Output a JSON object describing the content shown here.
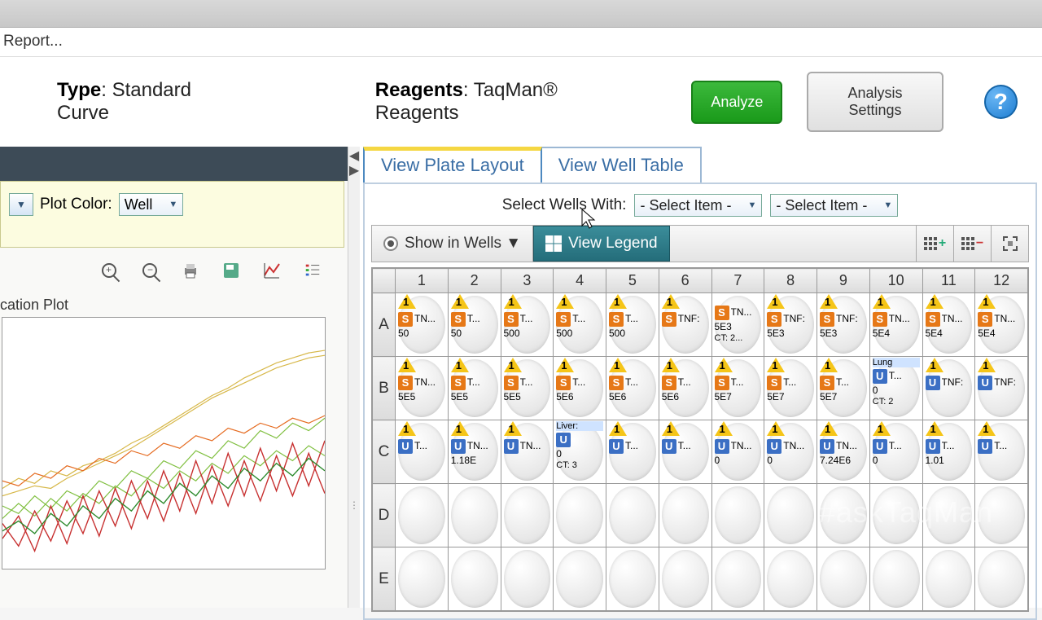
{
  "menubar": {
    "report": "Report..."
  },
  "header": {
    "type_label": "Type",
    "type_value": "Standard Curve",
    "reagents_label": "Reagents",
    "reagents_value": "TaqMan® Reagents",
    "analyze": "Analyze",
    "settings": "Analysis Settings",
    "help": "?"
  },
  "left": {
    "plot_color_label": "Plot Color:",
    "plot_color_value": "Well",
    "plot_title": "cation Plot",
    "chart": {
      "type": "line",
      "xlim": [
        0,
        40
      ],
      "ylim": [
        0,
        10
      ],
      "background_color": "#ffffff",
      "grid_color": "#e0e0e0",
      "series": [
        {
          "color": "#d7b84a",
          "width": 1.2,
          "points": [
            [
              0,
              3.2
            ],
            [
              2,
              3.6
            ],
            [
              4,
              3.4
            ],
            [
              6,
              3.9
            ],
            [
              8,
              3.7
            ],
            [
              10,
              4.1
            ],
            [
              12,
              4.3
            ],
            [
              14,
              4.6
            ],
            [
              16,
              5.0
            ],
            [
              18,
              5.3
            ],
            [
              20,
              5.7
            ],
            [
              22,
              6.1
            ],
            [
              24,
              6.5
            ],
            [
              26,
              6.9
            ],
            [
              28,
              7.2
            ],
            [
              30,
              7.6
            ],
            [
              32,
              7.9
            ],
            [
              34,
              8.2
            ],
            [
              36,
              8.4
            ],
            [
              38,
              8.6
            ],
            [
              40,
              8.7
            ]
          ]
        },
        {
          "color": "#d7b84a",
          "width": 1.2,
          "points": [
            [
              0,
              2.9
            ],
            [
              2,
              3.1
            ],
            [
              4,
              3.3
            ],
            [
              6,
              3.2
            ],
            [
              8,
              3.6
            ],
            [
              10,
              3.9
            ],
            [
              12,
              4.2
            ],
            [
              14,
              4.5
            ],
            [
              16,
              4.8
            ],
            [
              18,
              5.2
            ],
            [
              20,
              5.6
            ],
            [
              22,
              6.0
            ],
            [
              24,
              6.4
            ],
            [
              26,
              6.8
            ],
            [
              28,
              7.1
            ],
            [
              30,
              7.4
            ],
            [
              32,
              7.7
            ],
            [
              34,
              8.0
            ],
            [
              36,
              8.2
            ],
            [
              38,
              8.4
            ],
            [
              40,
              8.5
            ]
          ]
        },
        {
          "color": "#7fbf3f",
          "width": 1.2,
          "points": [
            [
              0,
              2.5
            ],
            [
              2,
              2.2
            ],
            [
              4,
              2.9
            ],
            [
              6,
              2.4
            ],
            [
              8,
              3.1
            ],
            [
              10,
              2.8
            ],
            [
              12,
              3.5
            ],
            [
              14,
              3.2
            ],
            [
              16,
              3.9
            ],
            [
              18,
              3.6
            ],
            [
              20,
              4.3
            ],
            [
              22,
              4.0
            ],
            [
              24,
              4.7
            ],
            [
              26,
              4.4
            ],
            [
              28,
              5.1
            ],
            [
              30,
              4.8
            ],
            [
              32,
              5.5
            ],
            [
              34,
              5.2
            ],
            [
              36,
              5.8
            ],
            [
              38,
              5.5
            ],
            [
              40,
              6.0
            ]
          ]
        },
        {
          "color": "#7fbf3f",
          "width": 1.2,
          "points": [
            [
              0,
              2.0
            ],
            [
              2,
              2.6
            ],
            [
              4,
              2.1
            ],
            [
              6,
              2.8
            ],
            [
              8,
              2.3
            ],
            [
              10,
              3.0
            ],
            [
              12,
              2.6
            ],
            [
              14,
              3.3
            ],
            [
              16,
              2.9
            ],
            [
              18,
              3.6
            ],
            [
              20,
              3.2
            ],
            [
              22,
              3.9
            ],
            [
              24,
              3.5
            ],
            [
              26,
              4.2
            ],
            [
              28,
              3.8
            ],
            [
              30,
              4.5
            ],
            [
              32,
              4.1
            ],
            [
              34,
              4.7
            ],
            [
              36,
              4.3
            ],
            [
              38,
              4.9
            ],
            [
              40,
              4.5
            ]
          ]
        },
        {
          "color": "#c73030",
          "width": 1.4,
          "points": [
            [
              0,
              1.8
            ],
            [
              2,
              0.9
            ],
            [
              4,
              2.3
            ],
            [
              6,
              1.1
            ],
            [
              8,
              2.7
            ],
            [
              10,
              1.4
            ],
            [
              12,
              3.1
            ],
            [
              14,
              1.7
            ],
            [
              16,
              3.5
            ],
            [
              18,
              2.0
            ],
            [
              20,
              3.9
            ],
            [
              22,
              2.3
            ],
            [
              24,
              4.3
            ],
            [
              26,
              2.6
            ],
            [
              28,
              4.6
            ],
            [
              30,
              2.9
            ],
            [
              32,
              4.8
            ],
            [
              34,
              3.1
            ],
            [
              36,
              5.0
            ],
            [
              38,
              3.3
            ],
            [
              40,
              5.1
            ]
          ]
        },
        {
          "color": "#c73030",
          "width": 1.4,
          "points": [
            [
              0,
              1.2
            ],
            [
              2,
              2.1
            ],
            [
              4,
              0.7
            ],
            [
              6,
              2.5
            ],
            [
              8,
              1.0
            ],
            [
              10,
              2.9
            ],
            [
              12,
              1.3
            ],
            [
              14,
              3.2
            ],
            [
              16,
              1.6
            ],
            [
              18,
              3.5
            ],
            [
              20,
              1.9
            ],
            [
              22,
              3.8
            ],
            [
              24,
              2.2
            ],
            [
              26,
              4.1
            ],
            [
              28,
              2.5
            ],
            [
              30,
              4.3
            ],
            [
              32,
              2.7
            ],
            [
              34,
              4.5
            ],
            [
              36,
              2.9
            ],
            [
              38,
              4.6
            ],
            [
              40,
              3.0
            ]
          ]
        },
        {
          "color": "#e56a1f",
          "width": 1.2,
          "points": [
            [
              0,
              3.5
            ],
            [
              2,
              3.3
            ],
            [
              4,
              3.8
            ],
            [
              6,
              3.6
            ],
            [
              8,
              4.1
            ],
            [
              10,
              3.9
            ],
            [
              12,
              4.4
            ],
            [
              14,
              4.2
            ],
            [
              16,
              4.7
            ],
            [
              18,
              4.5
            ],
            [
              20,
              5.0
            ],
            [
              22,
              4.8
            ],
            [
              24,
              5.3
            ],
            [
              26,
              5.1
            ],
            [
              28,
              5.6
            ],
            [
              30,
              5.4
            ],
            [
              32,
              5.8
            ],
            [
              34,
              5.6
            ],
            [
              36,
              6.0
            ],
            [
              38,
              5.8
            ],
            [
              40,
              6.1
            ]
          ]
        },
        {
          "color": "#2e8b2e",
          "width": 1.4,
          "points": [
            [
              0,
              1.5
            ],
            [
              2,
              1.9
            ],
            [
              4,
              1.4
            ],
            [
              6,
              2.2
            ],
            [
              8,
              1.7
            ],
            [
              10,
              2.5
            ],
            [
              12,
              2.0
            ],
            [
              14,
              2.8
            ],
            [
              16,
              2.3
            ],
            [
              18,
              3.1
            ],
            [
              20,
              2.6
            ],
            [
              22,
              3.4
            ],
            [
              24,
              2.9
            ],
            [
              26,
              3.7
            ],
            [
              28,
              3.2
            ],
            [
              30,
              4.0
            ],
            [
              32,
              3.5
            ],
            [
              34,
              4.2
            ],
            [
              36,
              3.7
            ],
            [
              38,
              4.4
            ],
            [
              40,
              3.9
            ]
          ]
        }
      ]
    }
  },
  "right": {
    "tabs": {
      "layout": "View Plate Layout",
      "table": "View Well Table"
    },
    "select_label": "Select Wells With:",
    "select_item": "- Select Item -",
    "show_in_wells": "Show in Wells ▼",
    "view_legend": "View Legend",
    "cols": [
      "1",
      "2",
      "3",
      "4",
      "5",
      "6",
      "7",
      "8",
      "9",
      "10",
      "11",
      "12"
    ],
    "rows": [
      "A",
      "B",
      "C",
      "D",
      "E"
    ],
    "plate": {
      "A": [
        {
          "f": 1,
          "b": "S",
          "t": "TN...",
          "v": "50"
        },
        {
          "f": 1,
          "b": "S",
          "t": "T...",
          "v": "50"
        },
        {
          "f": 1,
          "b": "S",
          "t": "T...",
          "v": "500"
        },
        {
          "f": 1,
          "b": "S",
          "t": "T...",
          "v": "500"
        },
        {
          "f": 1,
          "b": "S",
          "t": "T...",
          "v": "500"
        },
        {
          "f": 1,
          "b": "S",
          "t": "TNF:",
          "v": ""
        },
        {
          "f": 0,
          "b": "S",
          "t": "TN...",
          "v": "5E3",
          "v2": "CT: 2..."
        },
        {
          "f": 1,
          "b": "S",
          "t": "TNF:",
          "v": "5E3"
        },
        {
          "f": 1,
          "b": "S",
          "t": "TNF:",
          "v": "5E3"
        },
        {
          "f": 1,
          "b": "S",
          "t": "TN...",
          "v": "5E4"
        },
        {
          "f": 1,
          "b": "S",
          "t": "TN...",
          "v": "5E4"
        },
        {
          "f": 1,
          "b": "S",
          "t": "TN...",
          "v": "5E4"
        }
      ],
      "B": [
        {
          "f": 1,
          "b": "S",
          "t": "TN...",
          "v": "5E5"
        },
        {
          "f": 1,
          "b": "S",
          "t": "T...",
          "v": "5E5"
        },
        {
          "f": 1,
          "b": "S",
          "t": "T...",
          "v": "5E5"
        },
        {
          "f": 1,
          "b": "S",
          "t": "T...",
          "v": "5E6"
        },
        {
          "f": 1,
          "b": "S",
          "t": "T...",
          "v": "5E6"
        },
        {
          "f": 1,
          "b": "S",
          "t": "T...",
          "v": "5E6"
        },
        {
          "f": 1,
          "b": "S",
          "t": "T...",
          "v": "5E7"
        },
        {
          "f": 1,
          "b": "S",
          "t": "T...",
          "v": "5E7"
        },
        {
          "f": 1,
          "b": "S",
          "t": "T...",
          "v": "5E7"
        },
        {
          "f": 0,
          "b": "U",
          "t": "T...",
          "v": "0",
          "top": "Lung",
          "v2": "CT: 2"
        },
        {
          "f": 1,
          "b": "U",
          "t": "TNF:",
          "v": ""
        },
        {
          "f": 1,
          "b": "U",
          "t": "TNF:",
          "v": ""
        }
      ],
      "C": [
        {
          "f": 1,
          "b": "U",
          "t": "T...",
          "v": ""
        },
        {
          "f": 1,
          "b": "U",
          "t": "TN...",
          "v": "1.18E"
        },
        {
          "f": 1,
          "b": "U",
          "t": "TN...",
          "v": ""
        },
        {
          "f": 0,
          "b": "U",
          "t": "",
          "v": "0",
          "top": "Liver:",
          "v2": "CT: 3"
        },
        {
          "f": 1,
          "b": "U",
          "t": "T...",
          "v": ""
        },
        {
          "f": 1,
          "b": "U",
          "t": "T...",
          "v": ""
        },
        {
          "f": 1,
          "b": "U",
          "t": "TN...",
          "v": "0"
        },
        {
          "f": 1,
          "b": "U",
          "t": "TN...",
          "v": "0"
        },
        {
          "f": 1,
          "b": "U",
          "t": "TN...",
          "v": "7.24E6"
        },
        {
          "f": 1,
          "b": "U",
          "t": "T...",
          "v": "0"
        },
        {
          "f": 1,
          "b": "U",
          "t": "T...",
          "v": "1.01"
        },
        {
          "f": 1,
          "b": "U",
          "t": "T...",
          "v": ""
        }
      ],
      "D": [
        null,
        null,
        null,
        null,
        null,
        null,
        null,
        null,
        null,
        null,
        null,
        null
      ],
      "E": [
        null,
        null,
        null,
        null,
        null,
        null,
        null,
        null,
        null,
        null,
        null,
        null
      ]
    }
  },
  "watermark": "#askTaqMan"
}
